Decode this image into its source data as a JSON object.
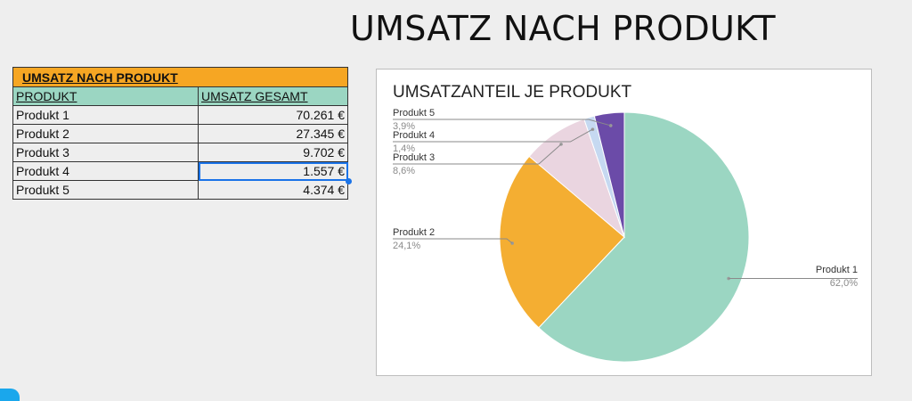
{
  "page_title": "UMSATZ NACH PRODUKT",
  "table": {
    "title": "UMSATZ NACH PRODUKT",
    "col_product": "PRODUKT",
    "col_revenue": "UMSATZ GESAMT",
    "rows": [
      {
        "product": "Produkt 1",
        "revenue": "70.261 €"
      },
      {
        "product": "Produkt 2",
        "revenue": "27.345 €"
      },
      {
        "product": "Produkt 3",
        "revenue": "9.702 €"
      },
      {
        "product": "Produkt 4",
        "revenue": "1.557 €"
      },
      {
        "product": "Produkt 5",
        "revenue": "4.374 €"
      }
    ]
  },
  "chart_data": {
    "type": "pie",
    "title": "UMSATZANTEIL JE PRODUKT",
    "categories": [
      "Produkt 1",
      "Produkt 2",
      "Produkt 3",
      "Produkt 4",
      "Produkt 5"
    ],
    "values": [
      70261,
      27345,
      9702,
      1557,
      4374
    ],
    "percent_labels": [
      "62,0%",
      "24,1%",
      "8,6%",
      "1,4%",
      "3,9%"
    ],
    "colors": [
      "#9bd6c2",
      "#f4ae32",
      "#ead5e0",
      "#c6d9f1",
      "#6b4ba8"
    ],
    "start": "12 o'clock",
    "direction": "clockwise"
  }
}
